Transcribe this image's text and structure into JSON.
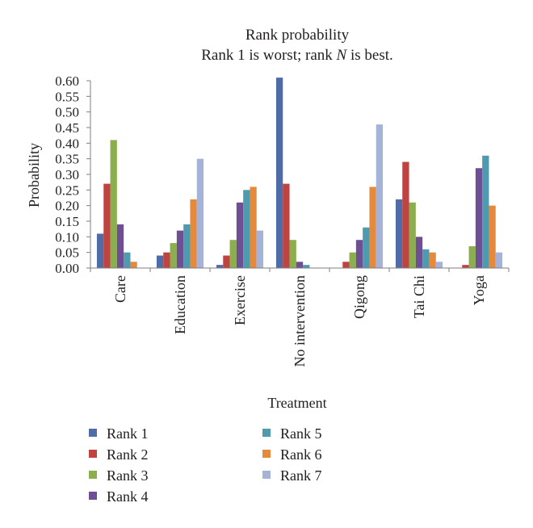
{
  "chart_data": {
    "type": "bar",
    "title": "Rank probability",
    "subtitle_parts": [
      "Rank 1 is worst; rank ",
      "N",
      " is best."
    ],
    "xlabel": "Treatment",
    "ylabel": "Probability",
    "ylim": [
      0,
      0.6
    ],
    "yticks": [
      "0.00",
      "0.05",
      "0.10",
      "0.15",
      "0.20",
      "0.25",
      "0.30",
      "0.35",
      "0.40",
      "0.45",
      "0.50",
      "0.55",
      "0.60"
    ],
    "grid": false,
    "legend_position": "bottom",
    "categories": [
      "Care",
      "Education",
      "Exercise",
      "No intervention",
      "Qigong",
      "Tai Chi",
      "Yoga"
    ],
    "series": [
      {
        "name": "Rank 1",
        "color": "#4f6ba8",
        "values": [
          0.11,
          0.04,
          0.01,
          0.61,
          0.0,
          0.22,
          0.0
        ]
      },
      {
        "name": "Rank 2",
        "color": "#bf4441",
        "values": [
          0.27,
          0.05,
          0.04,
          0.27,
          0.02,
          0.34,
          0.01
        ]
      },
      {
        "name": "Rank 3",
        "color": "#8caf4e",
        "values": [
          0.41,
          0.08,
          0.09,
          0.09,
          0.05,
          0.21,
          0.07
        ]
      },
      {
        "name": "Rank 4",
        "color": "#6e4f93",
        "values": [
          0.14,
          0.12,
          0.21,
          0.02,
          0.09,
          0.1,
          0.32
        ]
      },
      {
        "name": "Rank 5",
        "color": "#4e9aaf",
        "values": [
          0.05,
          0.14,
          0.25,
          0.01,
          0.13,
          0.06,
          0.36
        ]
      },
      {
        "name": "Rank 6",
        "color": "#e58a3c",
        "values": [
          0.02,
          0.22,
          0.26,
          0.0,
          0.26,
          0.05,
          0.2
        ]
      },
      {
        "name": "Rank 7",
        "color": "#a5b3d9",
        "values": [
          0.0,
          0.35,
          0.12,
          0.0,
          0.46,
          0.02,
          0.05
        ]
      }
    ]
  }
}
